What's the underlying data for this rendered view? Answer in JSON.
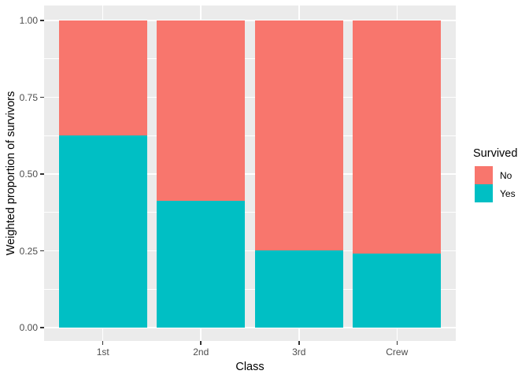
{
  "figure": {
    "background": "#FFFFFF",
    "panel_background": "#EBEBEB",
    "gridline_color": "#FFFFFF",
    "tick_label_color": "#4D4D4D",
    "tick_mark_color": "#333333"
  },
  "chart_data": {
    "type": "bar",
    "subtype": "stacked-filled",
    "title": "",
    "xlabel": "Class",
    "ylabel": "Weighted proportion of survivors",
    "categories": [
      "1st",
      "2nd",
      "3rd",
      "Crew"
    ],
    "series": [
      {
        "name": "No",
        "color": "#F8766D",
        "values": [
          0.375,
          0.586,
          0.748,
          0.76
        ]
      },
      {
        "name": "Yes",
        "color": "#00BFC4",
        "values": [
          0.625,
          0.414,
          0.252,
          0.24
        ]
      }
    ],
    "ylim": [
      0,
      1
    ],
    "y_ticks": [
      {
        "label": "0.00",
        "value": 0.0
      },
      {
        "label": "0.25",
        "value": 0.25
      },
      {
        "label": "0.50",
        "value": 0.5
      },
      {
        "label": "0.75",
        "value": 0.75
      },
      {
        "label": "1.00",
        "value": 1.0
      }
    ],
    "y_minor_values": [
      0.125,
      0.375,
      0.625,
      0.875
    ],
    "grid": true,
    "legend": {
      "title": "Survived",
      "position": "right",
      "entries": [
        {
          "label": "No",
          "color": "#F8766D"
        },
        {
          "label": "Yes",
          "color": "#00BFC4"
        }
      ]
    }
  }
}
